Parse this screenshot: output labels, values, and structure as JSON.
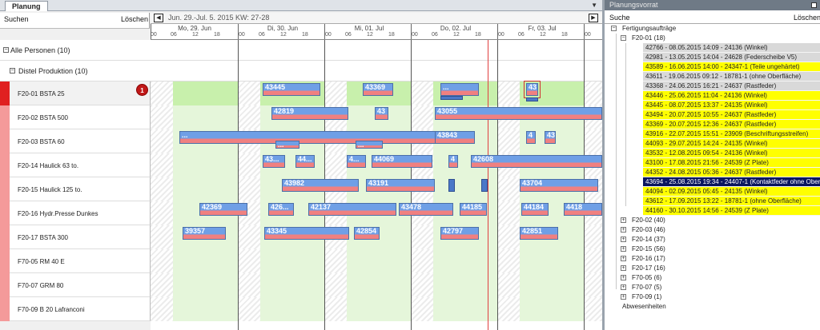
{
  "tab": {
    "label": "Planung"
  },
  "search": {
    "label": "Suchen",
    "clear": "Löschen"
  },
  "nav": {
    "range": "Jun. 29.-Jul. 5. 2015 KW: 27-28"
  },
  "timeline": {
    "days": [
      "Mo, 29. Jun",
      "Di, 30. Jun",
      "Mi, 01. Jul",
      "Do, 02. Jul",
      "Fr, 03. Jul"
    ],
    "hours": [
      "00",
      "06",
      "12",
      "18"
    ]
  },
  "groups": {
    "all": "Alle Personen (10)",
    "distel": "Distel Produktion (10)"
  },
  "resources": [
    {
      "name": "F20-01 BSTA 25"
    },
    {
      "name": "F20-02 BSTA 500"
    },
    {
      "name": "F20-03 BSTA 60"
    },
    {
      "name": "F20-14 Haulick 63 to."
    },
    {
      "name": "F20-15 Haulick 125 to."
    },
    {
      "name": "F20-16 Hydr.Presse Dunkes"
    },
    {
      "name": "F20-17 BSTA 300"
    },
    {
      "name": "F70-05 RM 40 E"
    },
    {
      "name": "F70-07 GRM 80"
    },
    {
      "name": "F70-09 B 20 Lafranconi"
    }
  ],
  "badge": "1",
  "bars": {
    "r0": [
      "43445",
      "43369",
      "...",
      "43"
    ],
    "r1": [
      "42819",
      "43",
      "43055"
    ],
    "r2": [
      "...",
      "43843",
      "4",
      "43",
      "...",
      "..."
    ],
    "r3": [
      "43...",
      "44...",
      "4...",
      "44069",
      "4",
      "42608"
    ],
    "r4": [
      "43982",
      "43191",
      "43704"
    ],
    "r5": [
      "42369",
      "426...",
      "42137",
      "43478",
      "44185",
      "44184",
      "4418"
    ],
    "r6": [
      "39357",
      "43345",
      "42854",
      "42797",
      "42851"
    ]
  },
  "panel": {
    "title": "Planungsvorrat",
    "search": "Suche",
    "clear": "Löschen",
    "root": "Fertigungsaufträge",
    "first_group": "F20-01 (18)",
    "orders": [
      {
        "text": "42766 - 08.05.2015 14:09 - 24136 (Winkel)",
        "hl": "grey"
      },
      {
        "text": "42981 - 13.05.2015 14:04 - 24628 (Federscheibe V5)",
        "hl": "grey"
      },
      {
        "text": "43589 - 16.06.2015 14:00 - 24347-1 (Teile ungehärtet)",
        "hl": "yellow"
      },
      {
        "text": "43611 - 19.06.2015 09:12 - 18781-1 (ohne Oberfläche)",
        "hl": "grey"
      },
      {
        "text": "43368 - 24.06.2015 16:21 - 24637 (Rastfeder)",
        "hl": "grey"
      },
      {
        "text": "43446 - 25.06.2015 11:04 - 24136 (Winkel)",
        "hl": "yellow"
      },
      {
        "text": "43445 - 08.07.2015 13:37 - 24135 (Winkel)",
        "hl": "yellow"
      },
      {
        "text": "43494 - 20.07.2015 10:55 - 24637 (Rastfeder)",
        "hl": "yellow"
      },
      {
        "text": "43369 - 20.07.2015 12:36 - 24637 (Rastfeder)",
        "hl": "yellow"
      },
      {
        "text": "43916 - 22.07.2015 15:51 - 23909 (Beschriftungsstreifen)",
        "hl": "yellow"
      },
      {
        "text": "44093 - 29.07.2015 14:24 - 24135 (Winkel)",
        "hl": "yellow"
      },
      {
        "text": "43532 - 12.08.2015 09:54 - 24136 (Winkel)",
        "hl": "yellow"
      },
      {
        "text": "43100 - 17.08.2015 21:56 - 24539 (Z Plate)",
        "hl": "yellow"
      },
      {
        "text": "44352 - 24.08.2015 05:36 - 24637 (Rastfeder)",
        "hl": "yellow"
      },
      {
        "text": "43694 - 25.08.2015 19:34 - 24407-1 (Kontaktfeder ohne Ober",
        "hl": "navy"
      },
      {
        "text": "44094 - 02.09.2015 05:45 - 24135 (Winkel)",
        "hl": "yellow"
      },
      {
        "text": "43612 - 17.09.2015 13:22 - 18781-1 (ohne Oberfläche)",
        "hl": "yellow"
      },
      {
        "text": "44160 - 30.10.2015 14:56 - 24539 (Z Plate)",
        "hl": "yellow"
      }
    ],
    "groups": [
      "F20-02 (40)",
      "F20-03 (46)",
      "F20-14 (37)",
      "F20-15 (56)",
      "F20-16 (17)",
      "F20-17 (16)",
      "F70-05 (6)",
      "F70-07 (5)",
      "F70-09 (1)"
    ],
    "absences": "Abwesenheiten"
  }
}
